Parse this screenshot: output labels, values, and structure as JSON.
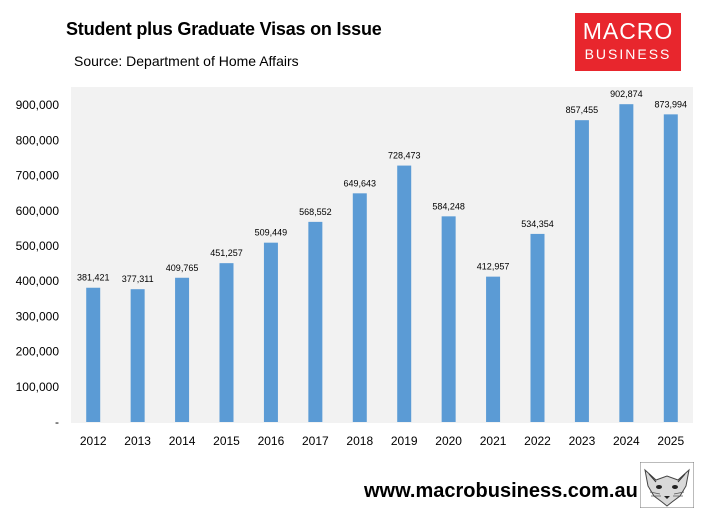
{
  "header": {
    "title": "Student plus Graduate Visas on Issue",
    "source": "Source: Department of Home Affairs"
  },
  "logo": {
    "line1": "MACRO",
    "line2": "BUSINESS",
    "bg_color": "#e8262d"
  },
  "footer": {
    "website": "www.macrobusiness.com.au"
  },
  "chart_data": {
    "type": "bar",
    "title": "Student plus Graduate Visas on Issue",
    "categories": [
      "2012",
      "2013",
      "2014",
      "2015",
      "2016",
      "2017",
      "2018",
      "2019",
      "2020",
      "2021",
      "2022",
      "2023",
      "2024",
      "2025"
    ],
    "values": [
      381421,
      377311,
      409765,
      451257,
      509449,
      568552,
      649643,
      728473,
      584248,
      412957,
      534354,
      857455,
      902874,
      873994
    ],
    "value_labels": [
      "381,421",
      "377,311",
      "409,765",
      "451,257",
      "509,449",
      "568,552",
      "649,643",
      "728,473",
      "584,248",
      "412,957",
      "534,354",
      "857,455",
      "902,874",
      "873,994"
    ],
    "yticks": [
      0,
      100000,
      200000,
      300000,
      400000,
      500000,
      600000,
      700000,
      800000,
      900000
    ],
    "ytick_labels": [
      "-",
      "100,000",
      "200,000",
      "300,000",
      "400,000",
      "500,000",
      "600,000",
      "700,000",
      "800,000",
      "900,000"
    ],
    "ylim": [
      0,
      950000
    ],
    "bar_color": "#5b9bd5",
    "plot_bg": "#f2f2f2",
    "grid": false,
    "legend": "none"
  }
}
